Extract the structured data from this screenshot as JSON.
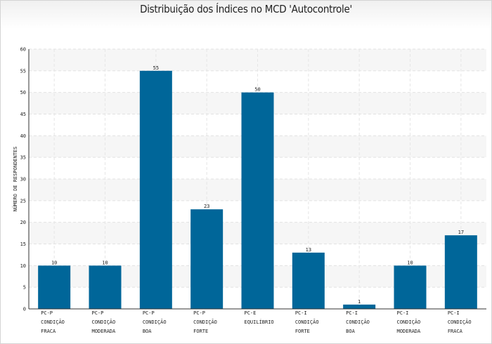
{
  "chart_data": {
    "type": "bar",
    "title": "Distribuição dos Índices no MCD 'Autocontrole'",
    "xlabel": "",
    "ylabel": "NÚMERO DE RESPONDENTES",
    "ylim": [
      0,
      60
    ],
    "yticks": [
      "0",
      "5",
      "10",
      "15",
      "20",
      "25",
      "30",
      "35",
      "40",
      "45",
      "50",
      "55",
      "60"
    ],
    "grid": true,
    "bar_color": "#006699",
    "categories": [
      [
        "PC-P",
        "CONDIÇÃO",
        "FRACA"
      ],
      [
        "PC-P",
        "CONDIÇÃO",
        "MODERADA"
      ],
      [
        "PC-P",
        "CONDIÇÃO",
        "BOA"
      ],
      [
        "PC-P",
        "CONDIÇÃO",
        "FORTE"
      ],
      [
        "PC-E",
        "EQUILÍBRIO"
      ],
      [
        "PC-I",
        "CONDIÇÃO",
        "FORTE"
      ],
      [
        "PC-I",
        "CONDIÇÃO",
        "BOA"
      ],
      [
        "PC-I",
        "CONDIÇÃO",
        "MODERADA"
      ],
      [
        "PC-I",
        "CONDIÇÃO",
        "FRACA"
      ]
    ],
    "values": [
      10,
      10,
      55,
      23,
      50,
      13,
      1,
      10,
      17
    ],
    "value_labels": [
      "10",
      "10",
      "55",
      "23",
      "50",
      "13",
      "1",
      "10",
      "17"
    ]
  }
}
